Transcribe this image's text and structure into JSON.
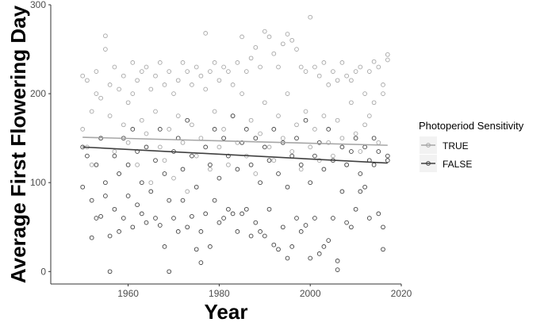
{
  "chart_data": {
    "type": "scatter",
    "xlabel": "Year",
    "ylabel": "Average First Flowering Day",
    "xlim": [
      1943,
      2020
    ],
    "ylim": [
      -14,
      300
    ],
    "x_ticks": [
      1960,
      1980,
      2000,
      2020
    ],
    "y_ticks": [
      0,
      100,
      200,
      300
    ],
    "x_tick_labels": [
      "1960",
      "1980",
      "2000",
      "2020"
    ],
    "y_tick_labels": [
      "0",
      "100",
      "200",
      "300"
    ],
    "grid": false,
    "legend": {
      "title": "Photoperiod Sensitivity",
      "placement": "right",
      "entries": [
        "TRUE",
        "FALSE"
      ]
    },
    "series": [
      {
        "name": "TRUE",
        "color": "#a6a6a6",
        "trend": {
          "x": [
            1950,
            2017
          ],
          "y": [
            151,
            142
          ]
        },
        "points": [
          [
            1950,
            220
          ],
          [
            1950,
            160
          ],
          [
            1951,
            215
          ],
          [
            1951,
            140
          ],
          [
            1952,
            180
          ],
          [
            1952,
            120
          ],
          [
            1953,
            225
          ],
          [
            1953,
            200
          ],
          [
            1954,
            195
          ],
          [
            1954,
            150
          ],
          [
            1955,
            265
          ],
          [
            1955,
            250
          ],
          [
            1956,
            210
          ],
          [
            1956,
            175
          ],
          [
            1957,
            230
          ],
          [
            1957,
            135
          ],
          [
            1958,
            205
          ],
          [
            1958,
            110
          ],
          [
            1959,
            220
          ],
          [
            1959,
            165
          ],
          [
            1960,
            190
          ],
          [
            1960,
            145
          ],
          [
            1961,
            235
          ],
          [
            1961,
            200
          ],
          [
            1962,
            215
          ],
          [
            1962,
            120
          ],
          [
            1963,
            225
          ],
          [
            1963,
            170
          ],
          [
            1964,
            230
          ],
          [
            1964,
            155
          ],
          [
            1965,
            205
          ],
          [
            1965,
            100
          ],
          [
            1966,
            220
          ],
          [
            1966,
            180
          ],
          [
            1967,
            235
          ],
          [
            1967,
            140
          ],
          [
            1968,
            210
          ],
          [
            1968,
            125
          ],
          [
            1969,
            225
          ],
          [
            1969,
            160
          ],
          [
            1970,
            200
          ],
          [
            1970,
            105
          ],
          [
            1971,
            215
          ],
          [
            1971,
            175
          ],
          [
            1972,
            235
          ],
          [
            1972,
            145
          ],
          [
            1973,
            225
          ],
          [
            1973,
            90
          ],
          [
            1974,
            210
          ],
          [
            1974,
            165
          ],
          [
            1975,
            230
          ],
          [
            1975,
            130
          ],
          [
            1976,
            220
          ],
          [
            1976,
            150
          ],
          [
            1977,
            268
          ],
          [
            1977,
            205
          ],
          [
            1978,
            225
          ],
          [
            1978,
            115
          ],
          [
            1979,
            235
          ],
          [
            1979,
            180
          ],
          [
            1980,
            215
          ],
          [
            1980,
            140
          ],
          [
            1981,
            230
          ],
          [
            1981,
            160
          ],
          [
            1982,
            225
          ],
          [
            1982,
            120
          ],
          [
            1983,
            210
          ],
          [
            1983,
            175
          ],
          [
            1984,
            235
          ],
          [
            1984,
            145
          ],
          [
            1985,
            264
          ],
          [
            1985,
            200
          ],
          [
            1986,
            225
          ],
          [
            1986,
            130
          ],
          [
            1987,
            240
          ],
          [
            1987,
            170
          ],
          [
            1988,
            252
          ],
          [
            1988,
            110
          ],
          [
            1989,
            230
          ],
          [
            1989,
            155
          ],
          [
            1990,
            270
          ],
          [
            1990,
            190
          ],
          [
            1991,
            264
          ],
          [
            1991,
            140
          ],
          [
            1992,
            245
          ],
          [
            1992,
            125
          ],
          [
            1993,
            230
          ],
          [
            1993,
            175
          ],
          [
            1994,
            256
          ],
          [
            1994,
            150
          ],
          [
            1995,
            267
          ],
          [
            1995,
            200
          ],
          [
            1996,
            260
          ],
          [
            1996,
            135
          ],
          [
            1997,
            250
          ],
          [
            1997,
            165
          ],
          [
            1998,
            230
          ],
          [
            1998,
            115
          ],
          [
            1999,
            225
          ],
          [
            1999,
            180
          ],
          [
            2000,
            286
          ],
          [
            2000,
            140
          ],
          [
            2001,
            230
          ],
          [
            2001,
            160
          ],
          [
            2002,
            220
          ],
          [
            2002,
            125
          ],
          [
            2003,
            235
          ],
          [
            2003,
            175
          ],
          [
            2004,
            210
          ],
          [
            2004,
            145
          ],
          [
            2005,
            225
          ],
          [
            2005,
            130
          ],
          [
            2006,
            215
          ],
          [
            2006,
            170
          ],
          [
            2007,
            235
          ],
          [
            2007,
            150
          ],
          [
            2008,
            220
          ],
          [
            2008,
            120
          ],
          [
            2009,
            215
          ],
          [
            2009,
            190
          ],
          [
            2010,
            225
          ],
          [
            2010,
            155
          ],
          [
            2011,
            230
          ],
          [
            2011,
            135
          ],
          [
            2012,
            200
          ],
          [
            2012,
            165
          ],
          [
            2013,
            225
          ],
          [
            2013,
            175
          ],
          [
            2014,
            236
          ],
          [
            2014,
            190
          ],
          [
            2015,
            230
          ],
          [
            2015,
            145
          ],
          [
            2016,
            210
          ],
          [
            2016,
            200
          ],
          [
            2017,
            244
          ],
          [
            2017,
            238
          ]
        ]
      },
      {
        "name": "FALSE",
        "color": "#404040",
        "trend": {
          "x": [
            1950,
            2017
          ],
          "y": [
            140,
            122
          ]
        },
        "points": [
          [
            1950,
            95
          ],
          [
            1950,
            140
          ],
          [
            1951,
            130
          ],
          [
            1952,
            38
          ],
          [
            1952,
            80
          ],
          [
            1953,
            60
          ],
          [
            1953,
            120
          ],
          [
            1954,
            62
          ],
          [
            1954,
            150
          ],
          [
            1955,
            85
          ],
          [
            1955,
            100
          ],
          [
            1956,
            0
          ],
          [
            1956,
            40
          ],
          [
            1957,
            130
          ],
          [
            1957,
            70
          ],
          [
            1958,
            45
          ],
          [
            1958,
            110
          ],
          [
            1959,
            60
          ],
          [
            1959,
            150
          ],
          [
            1960,
            85
          ],
          [
            1960,
            120
          ],
          [
            1961,
            50
          ],
          [
            1961,
            160
          ],
          [
            1962,
            75
          ],
          [
            1962,
            135
          ],
          [
            1963,
            65
          ],
          [
            1963,
            100
          ],
          [
            1964,
            55
          ],
          [
            1964,
            140
          ],
          [
            1965,
            90
          ],
          [
            1966,
            60
          ],
          [
            1966,
            125
          ],
          [
            1967,
            52
          ],
          [
            1967,
            160
          ],
          [
            1968,
            28
          ],
          [
            1968,
            110
          ],
          [
            1969,
            0
          ],
          [
            1969,
            80
          ],
          [
            1970,
            60
          ],
          [
            1970,
            135
          ],
          [
            1971,
            45
          ],
          [
            1971,
            150
          ],
          [
            1972,
            80
          ],
          [
            1972,
            115
          ],
          [
            1973,
            50
          ],
          [
            1973,
            170
          ],
          [
            1974,
            62
          ],
          [
            1974,
            130
          ],
          [
            1975,
            25
          ],
          [
            1975,
            95
          ],
          [
            1976,
            10
          ],
          [
            1976,
            45
          ],
          [
            1977,
            65
          ],
          [
            1977,
            140
          ],
          [
            1978,
            28
          ],
          [
            1978,
            120
          ],
          [
            1979,
            80
          ],
          [
            1979,
            160
          ],
          [
            1980,
            55
          ],
          [
            1980,
            105
          ],
          [
            1981,
            60
          ],
          [
            1981,
            150
          ],
          [
            1982,
            70
          ],
          [
            1982,
            130
          ],
          [
            1983,
            65
          ],
          [
            1983,
            175
          ],
          [
            1984,
            45
          ],
          [
            1984,
            115
          ],
          [
            1985,
            65
          ],
          [
            1985,
            145
          ],
          [
            1986,
            70
          ],
          [
            1986,
            160
          ],
          [
            1987,
            40
          ],
          [
            1987,
            120
          ],
          [
            1988,
            55
          ],
          [
            1988,
            150
          ],
          [
            1989,
            45
          ],
          [
            1989,
            100
          ],
          [
            1990,
            40
          ],
          [
            1990,
            140
          ],
          [
            1991,
            70
          ],
          [
            1991,
            125
          ],
          [
            1992,
            30
          ],
          [
            1992,
            160
          ],
          [
            1993,
            25
          ],
          [
            1993,
            110
          ],
          [
            1994,
            50
          ],
          [
            1994,
            145
          ],
          [
            1995,
            15
          ],
          [
            1995,
            95
          ],
          [
            1996,
            28
          ],
          [
            1996,
            130
          ],
          [
            1997,
            60
          ],
          [
            1997,
            150
          ],
          [
            1998,
            45
          ],
          [
            1998,
            120
          ],
          [
            1999,
            52
          ],
          [
            1999,
            170
          ],
          [
            2000,
            15
          ],
          [
            2000,
            100
          ],
          [
            2001,
            60
          ],
          [
            2001,
            130
          ],
          [
            2002,
            20
          ],
          [
            2002,
            145
          ],
          [
            2003,
            28
          ],
          [
            2003,
            115
          ],
          [
            2004,
            35
          ],
          [
            2004,
            160
          ],
          [
            2005,
            60
          ],
          [
            2005,
            125
          ],
          [
            2006,
            2
          ],
          [
            2006,
            12
          ],
          [
            2007,
            90
          ],
          [
            2007,
            140
          ],
          [
            2008,
            55
          ],
          [
            2008,
            120
          ],
          [
            2009,
            50
          ],
          [
            2009,
            135
          ],
          [
            2010,
            70
          ],
          [
            2010,
            150
          ],
          [
            2011,
            90
          ],
          [
            2011,
            110
          ],
          [
            2012,
            95
          ],
          [
            2012,
            140
          ],
          [
            2013,
            60
          ],
          [
            2013,
            125
          ],
          [
            2014,
            120
          ],
          [
            2014,
            150
          ],
          [
            2015,
            65
          ],
          [
            2015,
            135
          ],
          [
            2016,
            50
          ],
          [
            2016,
            25
          ],
          [
            2017,
            130
          ],
          [
            2017,
            125
          ]
        ]
      }
    ]
  }
}
